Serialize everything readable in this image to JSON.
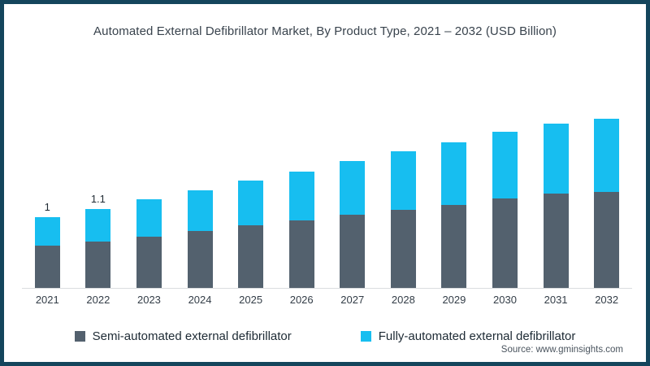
{
  "title": "Automated External Defibrillator Market, By Product Type, 2021 – 2032 (USD Billion)",
  "source": "Source: www.gminsights.com",
  "colors": {
    "frame_border": "#14455C",
    "background": "#FFFFFF",
    "semi_automated": "#53616E",
    "fully_automated": "#17BEF0",
    "axis_line": "#DADDE0",
    "title_text": "#39434D",
    "tick_text": "#333D47",
    "bar_label_text": "#1F2A33",
    "source_text": "#4A545E"
  },
  "legend": [
    {
      "label": "Semi-automated external defibrillator",
      "color": "#53616E"
    },
    {
      "label": "Fully-automated external defibrillator",
      "color": "#17BEF0"
    }
  ],
  "chart_data": {
    "type": "bar",
    "stacked": true,
    "title": "Automated External Defibrillator Market, By Product Type, 2021 – 2032 (USD Billion)",
    "unit": "USD Billion",
    "categories": [
      "2021",
      "2022",
      "2023",
      "2024",
      "2025",
      "2026",
      "2027",
      "2028",
      "2029",
      "2030",
      "2031",
      "2032"
    ],
    "series": [
      {
        "name": "Semi-automated external defibrillator",
        "color": "#53616E",
        "values": [
          0.6,
          0.66,
          0.72,
          0.8,
          0.88,
          0.95,
          1.03,
          1.1,
          1.17,
          1.26,
          1.33,
          1.36
        ]
      },
      {
        "name": "Fully-automated external defibrillator",
        "color": "#17BEF0",
        "values": [
          0.4,
          0.46,
          0.53,
          0.58,
          0.64,
          0.69,
          0.76,
          0.83,
          0.89,
          0.95,
          0.99,
          1.03
        ]
      }
    ],
    "totals": [
      1.0,
      1.1,
      1.25,
      1.38,
      1.52,
      1.64,
      1.79,
      1.93,
      2.06,
      2.21,
      2.32,
      2.39
    ],
    "bar_labels": [
      "1",
      "1.1",
      "",
      "",
      "",
      "",
      "",
      "",
      "",
      "",
      "",
      ""
    ],
    "xlabel": "",
    "ylabel": "",
    "ylim": [
      0,
      2.5
    ],
    "y_axis_visible": false,
    "grid": false,
    "legend_position": "bottom"
  }
}
